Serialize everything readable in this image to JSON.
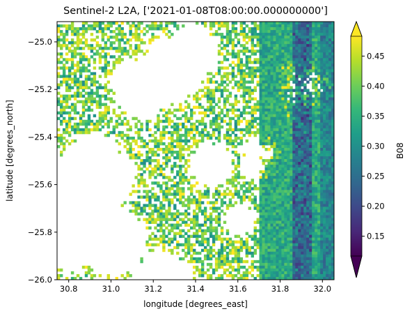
{
  "chart_data": {
    "type": "heatmap",
    "title": "Sentinel-2 L2A, ['2021-01-08T08:00:00.000000000']",
    "xlabel": "longitude [degrees_east]",
    "ylabel": "latitude [degrees_north]",
    "xlim": [
      30.745,
      32.055
    ],
    "ylim": [
      -26.0,
      -24.915
    ],
    "xticks": [
      30.8,
      31.0,
      31.2,
      31.4,
      31.6,
      31.8,
      32.0
    ],
    "xtick_labels": [
      "30.8",
      "31.0",
      "31.2",
      "31.4",
      "31.6",
      "31.8",
      "32.0"
    ],
    "yticks": [
      -25.0,
      -25.2,
      -25.4,
      -25.6,
      -25.8,
      -26.0
    ],
    "ytick_labels": [
      "−25.0",
      "−25.2",
      "−25.4",
      "−25.6",
      "−25.8",
      "−26.0"
    ],
    "colorbar": {
      "label": "B08",
      "range": [
        0.117,
        0.483
      ],
      "ticks": [
        0.15,
        0.2,
        0.25,
        0.3,
        0.35,
        0.4,
        0.45
      ],
      "tick_labels": [
        "0.15",
        "0.20",
        "0.25",
        "0.30",
        "0.35",
        "0.40",
        "0.45"
      ],
      "extend": "both",
      "colormap": "viridis"
    },
    "masked_color": "#ffffff",
    "description_of_field": "cloud-masked near-infrared reflectance; masked (white) areas dominate west and north-centre, denser valid data toward the east"
  },
  "colors": {
    "viridis": [
      "#440154",
      "#482878",
      "#3e4989",
      "#31688e",
      "#26828e",
      "#1f9e89",
      "#35b779",
      "#6ece58",
      "#b5de2b",
      "#fde725"
    ]
  }
}
